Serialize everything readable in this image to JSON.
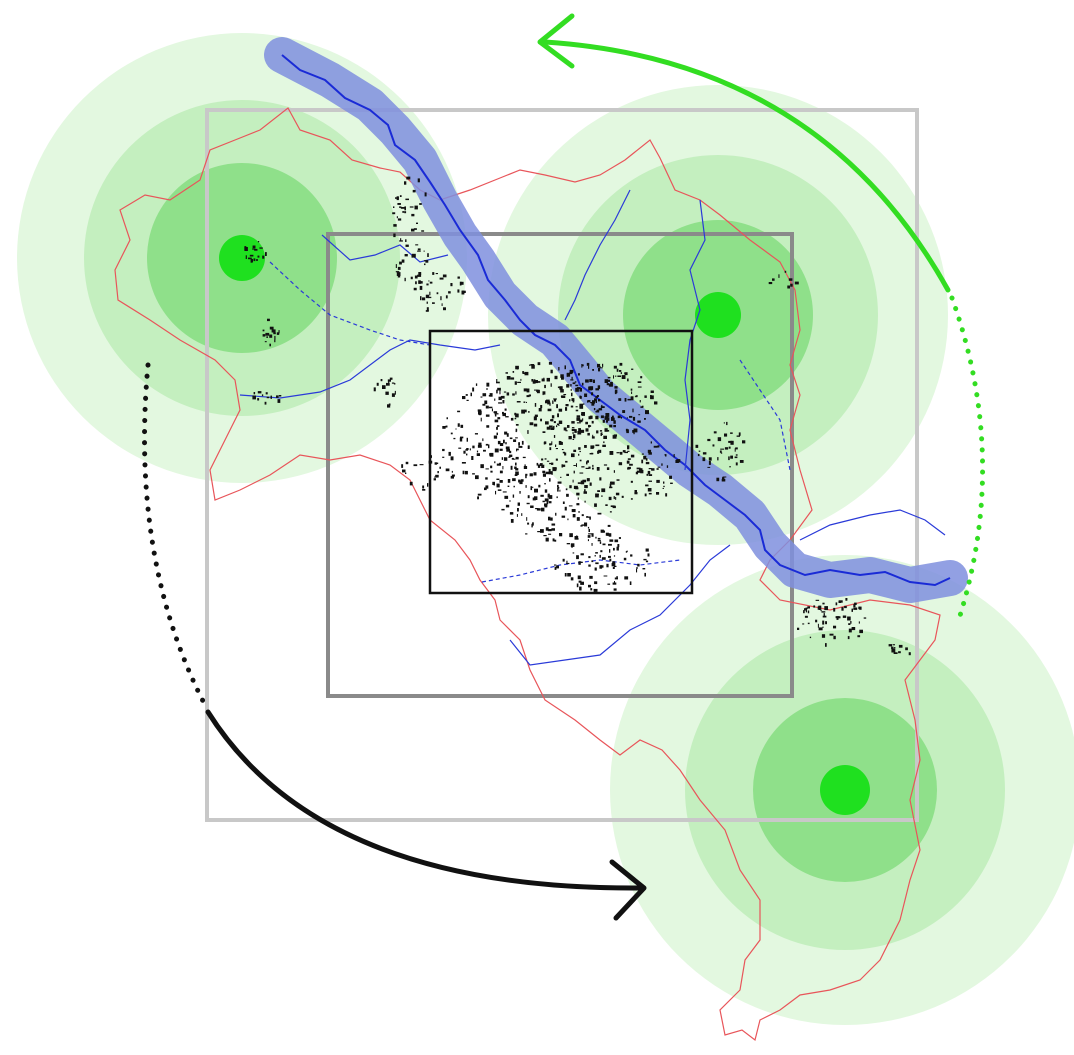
{
  "colors": {
    "background": "#ffffff",
    "green_halo_outer": "#e3f8e0",
    "green_halo_mid": "#c4efbf",
    "green_halo_inner": "#8fe08a",
    "green_core": "#1fe01f",
    "river_buffer": "#7f8fde",
    "river_line": "#1a2bd6",
    "boundary_line": "#e8555a",
    "tributary_line": "#2a3ad8",
    "frame_outer": "#c8c8c8",
    "frame_middle": "#8a8a8a",
    "frame_inner": "#111111",
    "arrow_green": "#33dd22",
    "arrow_black": "#111111",
    "buildings": "#111111"
  },
  "icons": {
    "cw_arrow_green": "arrow-head-icon",
    "cw_arrow_black": "arrow-head-icon"
  }
}
